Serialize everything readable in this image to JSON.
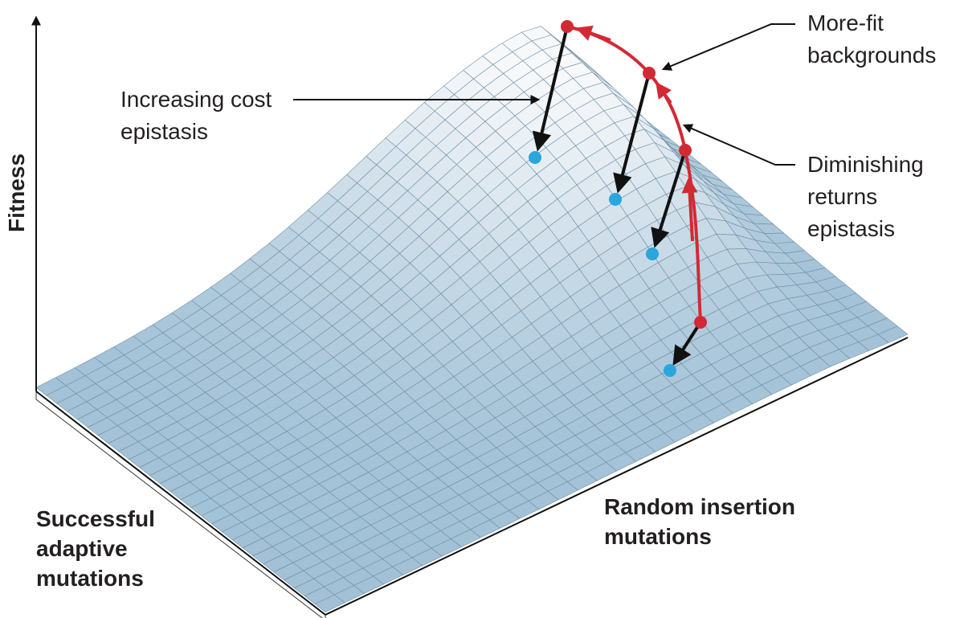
{
  "axes": {
    "y_label": "Fitness",
    "x_label": [
      "Successful",
      "adaptive",
      "mutations"
    ],
    "z_label": [
      "Random insertion",
      "mutations"
    ]
  },
  "annotations": [
    {
      "lines": [
        "Increasing cost",
        "epistasis"
      ]
    },
    {
      "lines": [
        "More-fit",
        "backgrounds"
      ]
    },
    {
      "lines": [
        "Diminishing",
        "returns",
        "epistasis"
      ]
    }
  ]
}
